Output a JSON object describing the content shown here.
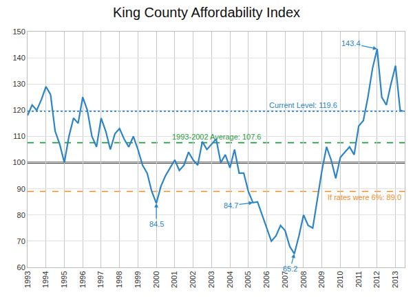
{
  "chart_data": {
    "type": "line",
    "title": "King County Affordability Index",
    "color": "#2b84c6",
    "grid": true,
    "x": [
      1993.0,
      1993.25,
      1993.5,
      1993.75,
      1994.0,
      1994.25,
      1994.5,
      1994.75,
      1995.0,
      1995.25,
      1995.5,
      1995.75,
      1996.0,
      1996.25,
      1996.5,
      1996.75,
      1997.0,
      1997.25,
      1997.5,
      1997.75,
      1998.0,
      1998.25,
      1998.5,
      1998.75,
      1999.0,
      1999.25,
      1999.5,
      1999.75,
      2000.0,
      2000.25,
      2000.5,
      2000.75,
      2001.0,
      2001.25,
      2001.5,
      2001.75,
      2002.0,
      2002.25,
      2002.5,
      2002.75,
      2003.0,
      2003.25,
      2003.5,
      2003.75,
      2004.0,
      2004.25,
      2004.5,
      2004.75,
      2005.0,
      2005.25,
      2005.5,
      2005.75,
      2006.0,
      2006.25,
      2006.5,
      2006.75,
      2007.0,
      2007.25,
      2007.5,
      2007.75,
      2008.0,
      2008.25,
      2008.5,
      2008.75,
      2009.0,
      2009.25,
      2009.5,
      2009.75,
      2010.0,
      2010.25,
      2010.5,
      2010.75,
      2011.0,
      2011.25,
      2011.5,
      2011.75,
      2012.0,
      2012.25,
      2012.5,
      2012.75,
      2013.0,
      2013.25,
      2013.4
    ],
    "values": [
      118,
      122,
      120,
      124,
      129,
      126,
      112,
      107,
      100,
      110,
      117,
      115,
      125,
      120,
      110,
      106,
      117,
      112,
      105,
      111,
      113,
      109,
      106,
      110,
      105,
      99,
      96,
      89,
      84.5,
      91,
      95,
      98,
      101,
      97,
      99,
      104,
      101,
      99,
      108,
      105,
      107,
      109,
      100,
      103,
      98,
      105,
      96,
      96,
      89,
      84.7,
      85,
      80,
      75,
      70,
      72,
      76,
      74,
      68,
      65.2,
      72,
      80,
      76,
      75,
      86,
      97,
      106,
      101,
      94,
      102,
      104,
      106,
      103,
      114,
      116,
      125,
      136,
      143.4,
      125,
      122,
      130,
      137,
      120,
      119.6
    ],
    "xlim": [
      1993,
      2013.5
    ],
    "xticks": [
      1993,
      1994,
      1995,
      1996,
      1997,
      1998,
      1999,
      2000,
      2001,
      2002,
      2003,
      2004,
      2005,
      2006,
      2007,
      2008,
      2009,
      2010,
      2011,
      2012,
      2013
    ],
    "ylim": [
      60,
      150
    ],
    "yticks": [
      60,
      70,
      80,
      90,
      100,
      110,
      120,
      130,
      140,
      150
    ],
    "reference_lines": [
      {
        "value": 119.6,
        "label": "Current Level: 119.6",
        "color": "#2b84c6",
        "line_style": "dotted"
      },
      {
        "value": 107.6,
        "label": "1993-2002 Average: 107.6",
        "color": "#1f9a3e",
        "line_style": "dashed"
      },
      {
        "value": 89.0,
        "label": "If rates were 6%: 89.0",
        "color": "#f28c28",
        "line_style": "dashed"
      },
      {
        "value": 100,
        "color": "#000000",
        "line_style": "solid"
      }
    ],
    "annotations": [
      {
        "x": 2012.0,
        "y": 143.4,
        "text": "143.4"
      },
      {
        "x": 2000.0,
        "y": 84.5,
        "text": "84.5"
      },
      {
        "x": 2005.25,
        "y": 84.7,
        "text": "84.7"
      },
      {
        "x": 2007.5,
        "y": 65.2,
        "text": "65.2"
      }
    ]
  }
}
